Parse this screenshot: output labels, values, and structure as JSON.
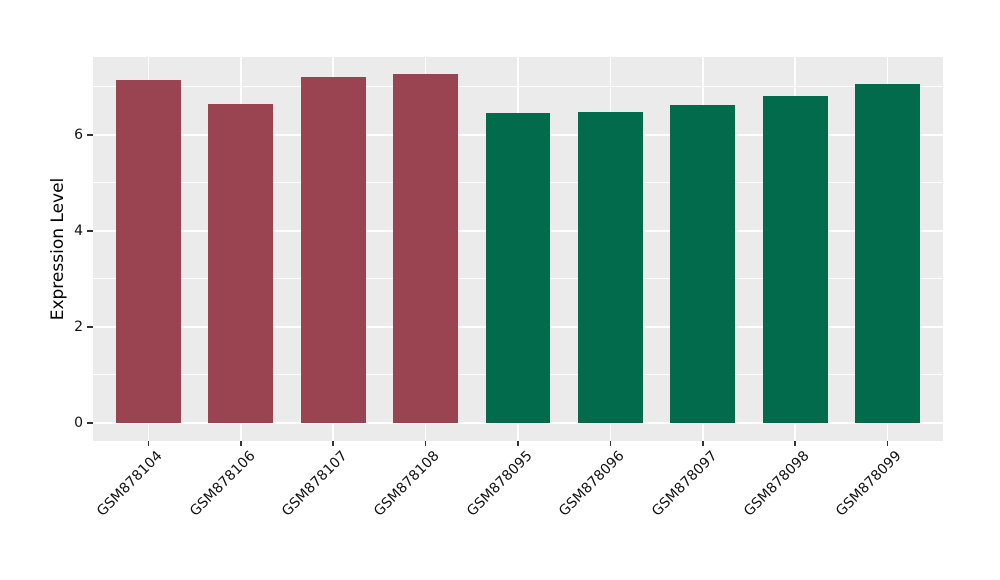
{
  "chart_data": {
    "type": "bar",
    "ylabel": "Expression Level",
    "categories": [
      "GSM878104",
      "GSM878106",
      "GSM878107",
      "GSM878108",
      "GSM878095",
      "GSM878096",
      "GSM878097",
      "GSM878098",
      "GSM878099"
    ],
    "values": [
      7.15,
      6.65,
      7.2,
      7.26,
      6.46,
      6.47,
      6.63,
      6.8,
      7.05
    ],
    "bar_colors": [
      "#9A4451",
      "#9A4451",
      "#9A4451",
      "#9A4451",
      "#026B4C",
      "#026B4C",
      "#026B4C",
      "#026B4C",
      "#026B4C"
    ],
    "yticks": [
      0,
      2,
      4,
      6
    ],
    "minor_yticks": [
      1,
      3,
      5,
      7
    ],
    "ylim": [
      -0.38,
      7.62
    ],
    "grid": true,
    "legend": "none",
    "bar_width_fraction": 0.7,
    "colors": {
      "panel_background": "#EBEBEB",
      "gridline": "#FFFFFF",
      "figure_background": "#FFFFFF",
      "tick": "#333333",
      "text": "#111111"
    }
  }
}
